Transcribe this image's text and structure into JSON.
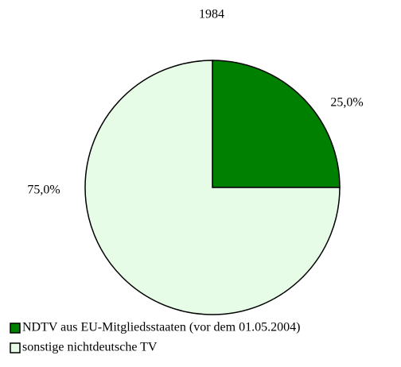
{
  "chart_data": {
    "type": "pie",
    "title": "1984",
    "categories": [
      "NDTV aus EU-Mitgliedsstaaten (vor dem 01.05.2004)",
      "sonstige nichtdeutsche TV"
    ],
    "values": [
      25,
      75
    ],
    "value_labels": [
      "25,0%",
      "75,0%"
    ],
    "colors": [
      "#008000",
      "#e6fce6"
    ]
  }
}
